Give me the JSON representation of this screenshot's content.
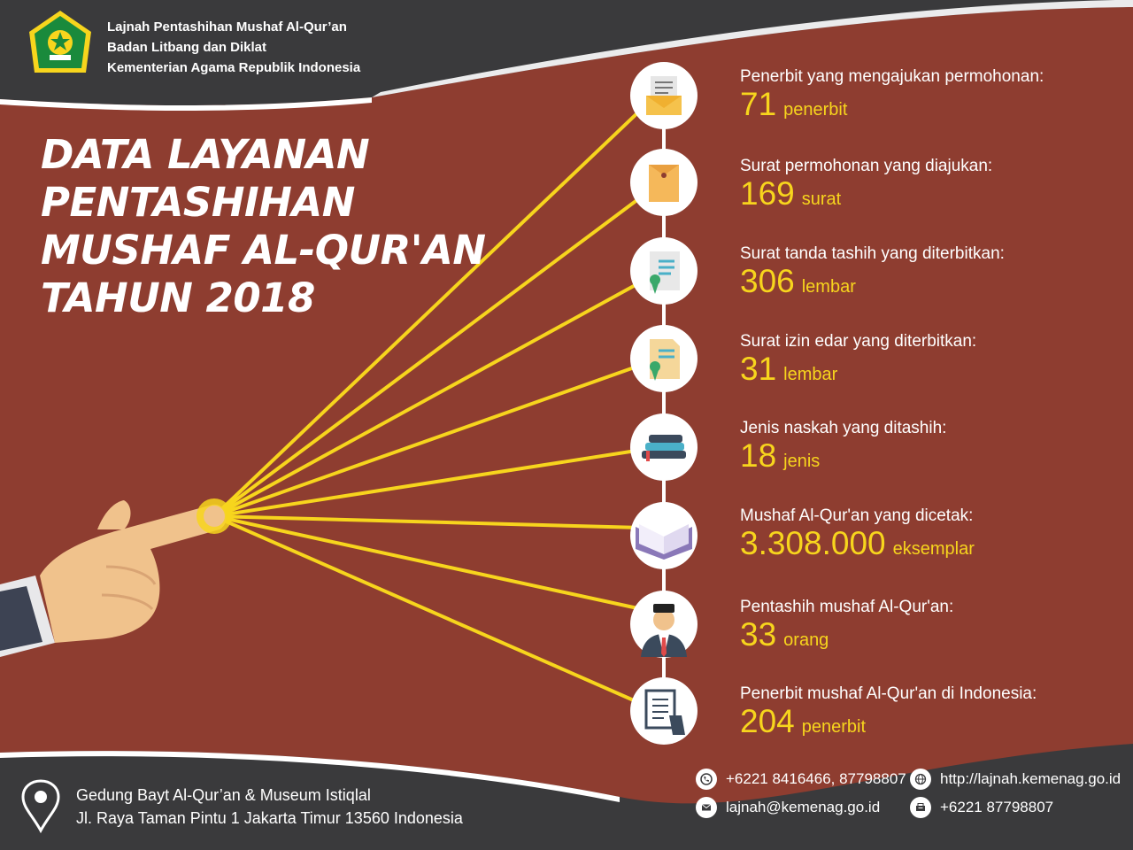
{
  "header": {
    "org_line1": "Lajnah Pentashihan Mushaf Al-Qur’an",
    "org_line2": "Badan Litbang dan Diklat",
    "org_line3": "Kementerian Agama Republik Indonesia"
  },
  "title": {
    "line1": "DATA LAYANAN",
    "line2": "PENTASHIHAN",
    "line3": "MUSHAF AL-QUR'AN",
    "line4": "TAHUN 2018"
  },
  "stats": [
    {
      "label": "Penerbit yang mengajukan permohonan:",
      "value": "71",
      "unit": "penerbit",
      "icon": "envelope-document-icon"
    },
    {
      "label": "Surat permohonan yang diajukan:",
      "value": "169",
      "unit": "surat",
      "icon": "envelope-folder-icon"
    },
    {
      "label": "Surat tanda tashih yang diterbitkan:",
      "value": "306",
      "unit": "lembar",
      "icon": "certificate-icon"
    },
    {
      "label": "Surat izin edar yang diterbitkan:",
      "value": "31",
      "unit": "lembar",
      "icon": "certificate-folded-icon"
    },
    {
      "label": "Jenis naskah yang ditashih:",
      "value": "18",
      "unit": "jenis",
      "icon": "book-stack-icon"
    },
    {
      "label": "Mushaf Al-Qur'an yang dicetak:",
      "value": "3.308.000",
      "unit": "eksemplar",
      "icon": "open-book-icon"
    },
    {
      "label": "Pentashih mushaf Al-Qur'an:",
      "value": "33",
      "unit": "orang",
      "icon": "person-peci-icon"
    },
    {
      "label": "Penerbit mushaf Al-Qur'an di Indonesia:",
      "value": "204",
      "unit": "penerbit",
      "icon": "document-hand-icon"
    }
  ],
  "footer": {
    "address_line1": "Gedung Bayt Al-Qur’an & Museum Istiqlal",
    "address_line2": "Jl. Raya Taman Pintu 1 Jakarta Timur 13560 Indonesia",
    "phone": "+6221 8416466, 87798807",
    "email": "lajnah@kemenag.go.id",
    "website": "http://lajnah.kemenag.go.id",
    "fax": "+6221 87798807"
  },
  "colors": {
    "background": "#8e3d30",
    "accent_yellow": "#f7d51d",
    "dark_band": "#3d3d3f"
  }
}
